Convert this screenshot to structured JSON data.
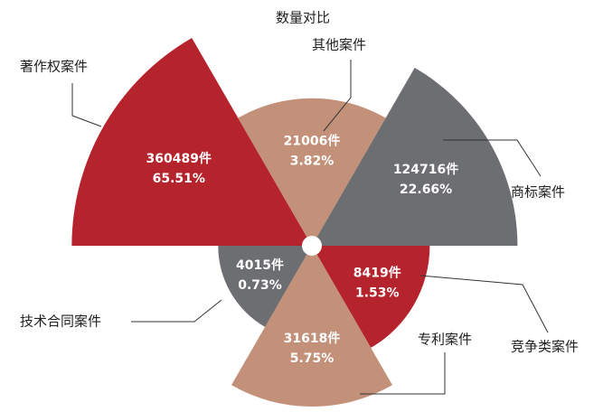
{
  "chart_data": {
    "type": "rose",
    "title": "数量对比",
    "categories": [
      "著作权案件",
      "其他案件",
      "商标案件",
      "竞争类案件",
      "专利案件",
      "技术合同案件"
    ],
    "values": [
      360489,
      21006,
      124716,
      8419,
      31618,
      4015
    ],
    "value_labels": [
      "360489件",
      "21006件",
      "124716件",
      "8419件",
      "31618件",
      "4015件"
    ],
    "shares": [
      65.51,
      3.82,
      22.66,
      1.53,
      5.75,
      0.73
    ],
    "share_labels": [
      "65.51%",
      "3.82%",
      "22.66%",
      "1.53%",
      "5.75%",
      "0.73%"
    ],
    "colors": [
      "#b5232c",
      "#c39179",
      "#6d6e71",
      "#b5232c",
      "#c39179",
      "#6d6e71"
    ]
  }
}
